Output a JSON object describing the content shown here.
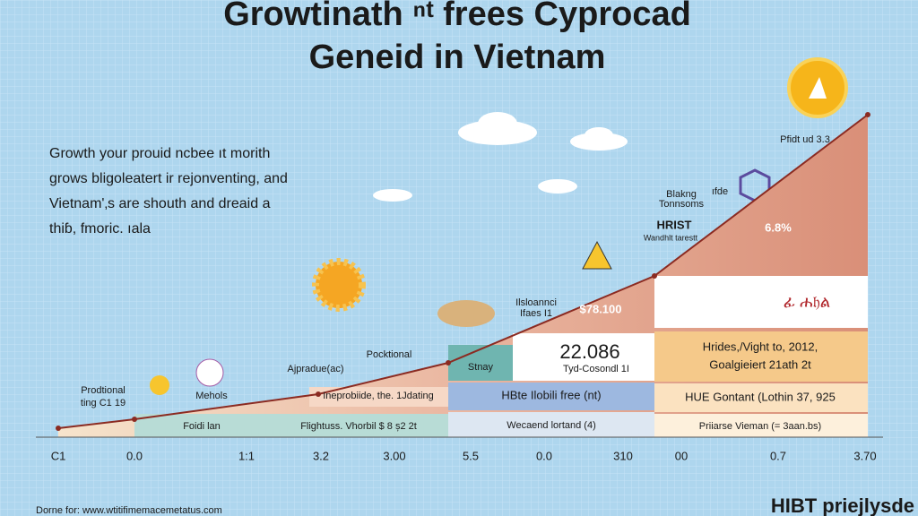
{
  "header": {
    "title_lines": [
      "Growtinath ⁿᵗ frees Cyprocad",
      "Geneid in Vietnam"
    ]
  },
  "intro": {
    "lines": [
      "Growth your prouid ncbee ıt morith",
      "grows bligoleatert ir rejonventing, and",
      "Vietnam'‚s are shouth and dreaid a",
      "thiɓ, fmoric. ıala"
    ]
  },
  "annotations": {
    "left_note": [
      "Prodtional",
      "ting C1 19"
    ],
    "coin_label": "Mehols",
    "mid_left": "Ajpradue(ac)",
    "pocket": "Pocktional",
    "mid_note": [
      "Ilsloannci",
      "Ifaes I1"
    ],
    "price": "$78.100",
    "big_value": "22.086",
    "big_sub": "Tyd-Cosondl 1I",
    "teal_box": "Stnay",
    "blocking": [
      "Blakng",
      "Tonnsoms"
    ],
    "small_icon": "ıfde",
    "hrist": "HRIST",
    "hrist_sub": "Wandhlt tarestt",
    "percent": "6.8%",
    "peak": "Pfidt ud 3.3"
  },
  "table": {
    "right": [
      "Hrides,/Vight to, 2012,",
      "Goalgieiert 21ath 2t",
      "HUE Gontant (Lothin 37, 925",
      "Priiarse Vieman (= 3aan.bs)"
    ],
    "middle": [
      "HBte Ilobili free (nt)",
      "Wecaend lortand (4)"
    ],
    "left": [
      "Ineprobiide, the. 1Jdating",
      "Foidi lan",
      "Flightuss. Vhorbil $ 8 ș2 2t"
    ],
    "icon_text": "ፊ ሐ𝔥ል"
  },
  "axis": {
    "labels": [
      "C1",
      "0.0",
      "1:1",
      "3.2",
      "3.00",
      "5.5",
      "0.0",
      "310",
      "00",
      "0.7",
      "3.70"
    ]
  },
  "footer": {
    "source": "Dorne for: www.wtitifimemacemetatus.com",
    "brand": "HIBT priejlysde"
  }
}
